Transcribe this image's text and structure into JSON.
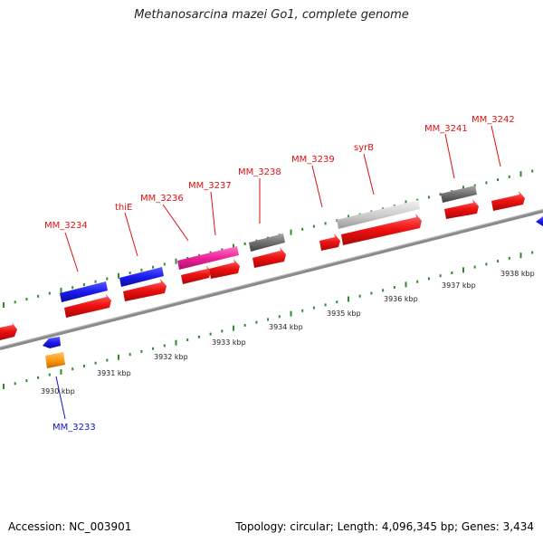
{
  "title": "Methanosarcina mazei Go1, complete genome",
  "footer": {
    "accession": "Accession: NC_003901",
    "info": "Topology: circular; Length: 4,096,345 bp; Genes: 3,434"
  },
  "colors": {
    "backbone": "#8a8a8a",
    "tick": "#2e8b2e",
    "label_forward": "#dd1111",
    "label_reverse": "#1111cc",
    "blue": "#1a1aee",
    "red": "#ee1111",
    "magenta": "#ee2299",
    "gray": "#707070",
    "lightgray": "#cfcfcf",
    "orange": "#ff9911"
  },
  "ticks": [
    "3930 kbp",
    "3931 kbp",
    "3932 kbp",
    "3933 kbp",
    "3934 kbp",
    "3935 kbp",
    "3936 kbp",
    "3937 kbp",
    "3938 kbp"
  ],
  "gene_labels": [
    {
      "id": "MM_3233",
      "text": "MM_3233",
      "strand": "reverse"
    },
    {
      "id": "MM_3234",
      "text": "MM_3234",
      "strand": "forward"
    },
    {
      "id": "thiE",
      "text": "thiE",
      "strand": "forward"
    },
    {
      "id": "MM_3236",
      "text": "MM_3236",
      "strand": "forward"
    },
    {
      "id": "MM_3237",
      "text": "MM_3237",
      "strand": "forward"
    },
    {
      "id": "MM_3238",
      "text": "MM_3238",
      "strand": "forward"
    },
    {
      "id": "MM_3239",
      "text": "MM_3239",
      "strand": "forward"
    },
    {
      "id": "syrB",
      "text": "syrB",
      "strand": "forward"
    },
    {
      "id": "MM_3241",
      "text": "MM_3241",
      "strand": "forward"
    },
    {
      "id": "MM_3242",
      "text": "MM_3242",
      "strand": "forward"
    }
  ]
}
